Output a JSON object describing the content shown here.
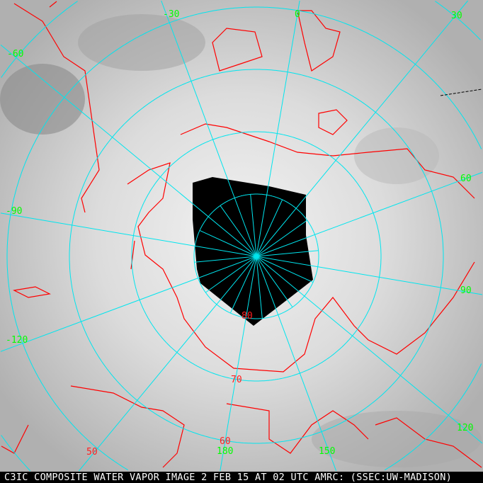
{
  "caption": "C3IC COMPOSITE WATER VAPOR IMAGE 2 FEB 15 AT 02 UTC AMRC: (SSEC:UW-MADISON)",
  "projection": "polar-stereographic",
  "colors": {
    "grid": "#00e5ee",
    "coastline": "#ff0000",
    "longitude_labels": "#00ff00",
    "latitude_labels": "#ff0000",
    "no_data": "#000000"
  },
  "longitude_labels": [
    "-30",
    "0",
    "30",
    "-60",
    "60",
    "-90",
    "90",
    "-120",
    "120",
    "150",
    "180"
  ],
  "latitude_labels": [
    "80",
    "70",
    "60",
    "50"
  ]
}
